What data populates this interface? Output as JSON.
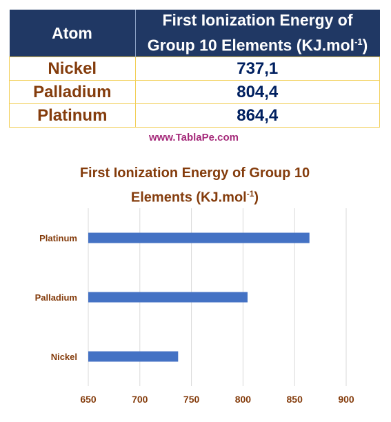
{
  "table": {
    "headers": {
      "atom": "Atom",
      "energy_line1": "First Ionization Energy of",
      "energy_line2": "Group 10 Elements (KJ.mol",
      "energy_sup": "-1",
      "energy_close": ")"
    },
    "rows": [
      {
        "atom": "Nickel",
        "energy": "737,1"
      },
      {
        "atom": "Palladium",
        "energy": "804,4"
      },
      {
        "atom": "Platinum",
        "energy": "864,4"
      }
    ]
  },
  "watermark": "www.TablaPe.com",
  "colors": {
    "header_bg": "#203864",
    "header_text": "#ffffff",
    "atom_text": "#843c0c",
    "value_text": "#002060",
    "cell_border": "#f2cf57",
    "watermark": "#a52a7a",
    "bar": "#4472c4",
    "grid": "#d9d9d9"
  },
  "chart_data": {
    "type": "bar",
    "orientation": "horizontal",
    "title_line1": "First Ionization Energy of Group 10",
    "title_line2": "Elements (KJ.mol",
    "title_sup": "-1",
    "title_close": ")",
    "categories": [
      "Nickel",
      "Palladium",
      "Platinum"
    ],
    "values": [
      737.1,
      804.4,
      864.4
    ],
    "xlim": [
      650,
      900
    ],
    "xticks": [
      650,
      700,
      750,
      800,
      850,
      900
    ],
    "grid": "vertical",
    "legend": "none"
  }
}
